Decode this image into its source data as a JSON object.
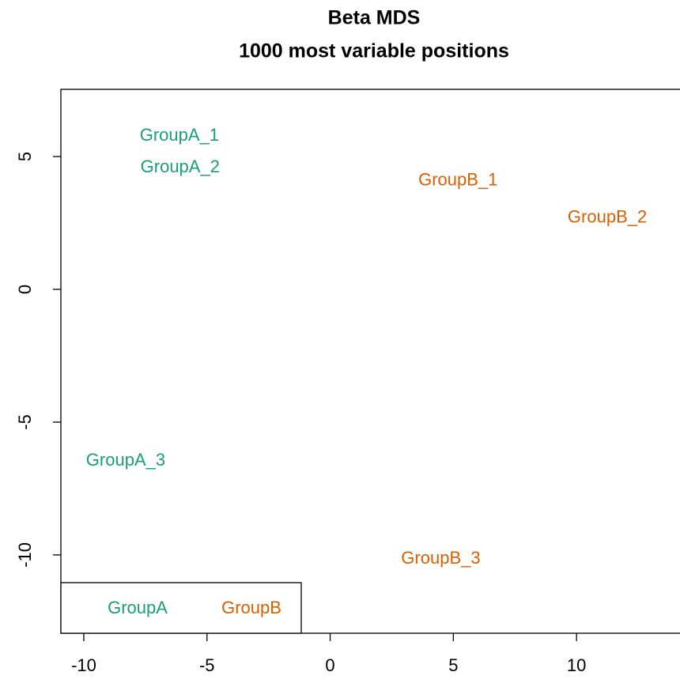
{
  "chart_data": {
    "type": "scatter",
    "title": "Beta MDS",
    "subtitle": "1000 most variable positions",
    "xlim": [
      -10.93,
      14.2
    ],
    "ylim": [
      -12.95,
      7.53
    ],
    "xticks": [
      -10,
      -5,
      0,
      5,
      10
    ],
    "yticks": [
      -10,
      -5,
      0,
      5
    ],
    "legend": "bottomleft",
    "series": [
      {
        "name": "GroupA",
        "color": "#1b9e77",
        "labels": [
          "GroupA_1",
          "GroupA_2",
          "GroupA_3"
        ],
        "x": [
          -6.12,
          -6.09,
          -8.3
        ],
        "y": [
          5.77,
          4.58,
          -6.46
        ]
      },
      {
        "name": "GroupB",
        "color": "#d95f02",
        "labels": [
          "GroupB_1",
          "GroupB_2",
          "GroupB_3"
        ],
        "x": [
          5.19,
          11.25,
          4.49
        ],
        "y": [
          4.08,
          2.68,
          -10.15
        ]
      }
    ]
  }
}
